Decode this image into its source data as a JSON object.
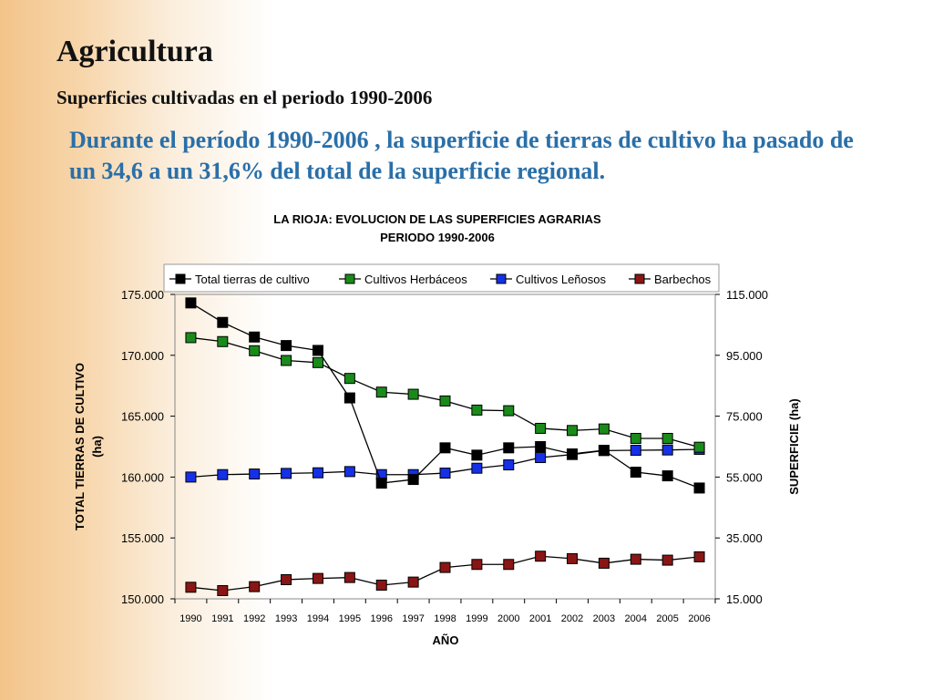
{
  "slide": {
    "title": "Agricultura",
    "subtitle": "Superficies cultivadas en el periodo 1990-2006",
    "body": "Durante el período 1990-2006 , la superficie de tierras de cultivo ha pasado de un 34,6 a un 31,6% del total de la superficie regional."
  },
  "colors": {
    "text_accent": "#2a6fa8",
    "total": "#000000",
    "herbaceos": "#1a8a1a",
    "lenosos": "#1530e6",
    "barbechos": "#8a1515"
  },
  "chart_data": {
    "type": "line",
    "title": "LA RIOJA: EVOLUCION DE LAS SUPERFICIES AGRARIAS",
    "subtitle": "PERIODO 1990-2006",
    "xlabel": "AÑO",
    "ylabel_left": "TOTAL TIERRAS DE CULTIVO",
    "ylabel_left_unit": "(ha)",
    "ylabel_right": "SUPERFICIE (ha)",
    "x": [
      "1990",
      "1991",
      "1992",
      "1993",
      "1994",
      "1995",
      "1996",
      "1997",
      "1998",
      "1999",
      "2000",
      "2001",
      "2002",
      "2003",
      "2004",
      "2005",
      "2006"
    ],
    "ylim_left": [
      150000,
      175000
    ],
    "ylim_right": [
      15000,
      115000
    ],
    "yticks_left": [
      "150.000",
      "155.000",
      "160.000",
      "165.000",
      "170.000",
      "175.000"
    ],
    "yticks_right": [
      "15.000",
      "35.000",
      "55.000",
      "75.000",
      "95.000",
      "115.000"
    ],
    "legend_position": "top",
    "grid": false,
    "series": [
      {
        "name": "Total tierras de cultivo",
        "axis": "left",
        "color": "#000000",
        "values": [
          174300,
          172700,
          171500,
          170800,
          170400,
          166500,
          159500,
          159800,
          162400,
          161800,
          162400,
          162500,
          161900,
          162200,
          160400,
          160100,
          159100
        ]
      },
      {
        "name": "Cultivos Herbáceos",
        "axis": "right",
        "color": "#1a8a1a",
        "values": [
          100800,
          99500,
          96500,
          93300,
          92600,
          87400,
          82900,
          82200,
          80000,
          77000,
          76800,
          71000,
          70300,
          70800,
          67700,
          67700,
          64800
        ]
      },
      {
        "name": "Cultivos Leñosos",
        "axis": "right",
        "color": "#1530e6",
        "values": [
          55000,
          55800,
          56000,
          56200,
          56400,
          56800,
          55800,
          55800,
          56300,
          57900,
          59000,
          61400,
          62400,
          63700,
          63800,
          63900,
          64100
        ]
      },
      {
        "name": "Barbechos",
        "axis": "right",
        "color": "#8a1515",
        "values": [
          18800,
          17700,
          19000,
          21300,
          21700,
          22000,
          19500,
          20500,
          25300,
          26300,
          26300,
          29000,
          28200,
          26700,
          28000,
          27700,
          28800
        ]
      }
    ]
  }
}
